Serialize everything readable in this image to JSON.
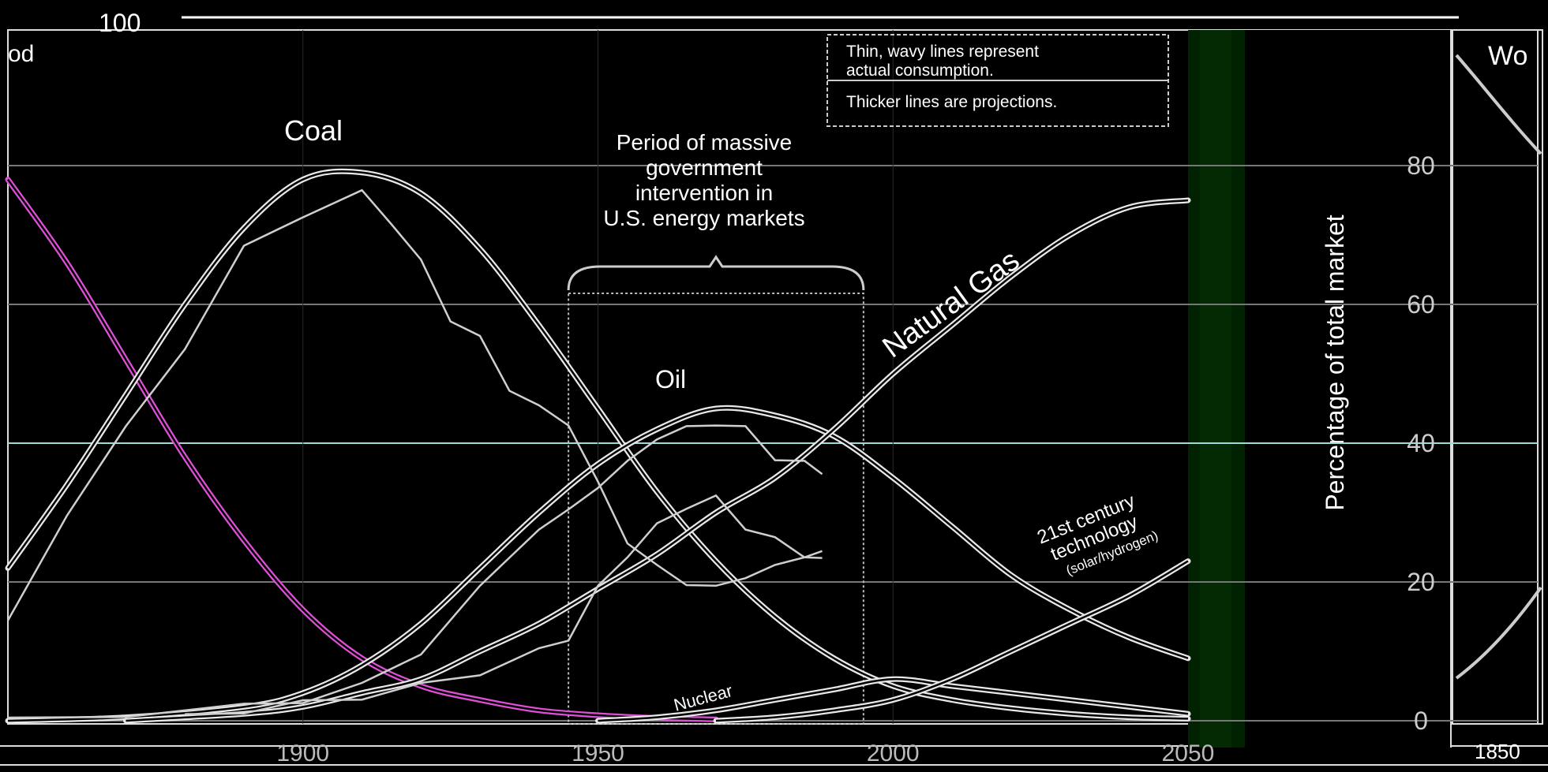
{
  "chart_data": {
    "type": "line",
    "title": "",
    "top_tick": "100",
    "ylabel": "Percentage of total market",
    "ylim": [
      0,
      100
    ],
    "yticks": [
      "0",
      "20",
      "40",
      "60",
      "80"
    ],
    "xlim": [
      1850,
      2050
    ],
    "xticks": [
      "1900",
      "1950",
      "2000",
      "2050"
    ],
    "legend": {
      "line1": "Thin, wavy lines represent",
      "line2": "actual consumption.",
      "line3": "Thicker lines are projections."
    },
    "annotations": {
      "wood": "od",
      "right_panel_label": "Wo",
      "right_panel_tick": "1850",
      "period": [
        "Period of massive",
        "government",
        "intervention in",
        "U.S. energy markets"
      ],
      "nuclear": "Nuclear",
      "tech": [
        "21st century",
        "technology",
        "(solar/hydrogen)"
      ]
    },
    "period_range": [
      1945,
      1995
    ],
    "series": [
      {
        "name": "Wood",
        "style": "projection",
        "x": [
          1850,
          1860,
          1870,
          1880,
          1890,
          1900,
          1910,
          1920,
          1930,
          1940,
          1950,
          1960,
          1970
        ],
        "values": [
          78,
          66,
          52,
          38,
          26,
          16,
          9,
          5,
          3,
          1.5,
          0.8,
          0.4,
          0.2
        ]
      },
      {
        "name": "Coal",
        "style": "projection",
        "x": [
          1850,
          1860,
          1870,
          1880,
          1890,
          1900,
          1910,
          1920,
          1930,
          1940,
          1950,
          1960,
          1970,
          1980,
          1990,
          2000,
          2010,
          2020,
          2030,
          2040,
          2050
        ],
        "values": [
          22,
          34,
          47,
          60,
          71,
          78,
          79,
          76,
          68,
          57,
          45,
          33,
          23,
          15,
          9,
          5,
          3,
          1.8,
          1,
          0.5,
          0.3
        ]
      },
      {
        "name": "Oil",
        "style": "projection",
        "x": [
          1850,
          1870,
          1890,
          1900,
          1910,
          1920,
          1930,
          1940,
          1950,
          1960,
          1970,
          1980,
          1990,
          2000,
          2010,
          2020,
          2030,
          2040,
          2050
        ],
        "values": [
          0,
          0.5,
          2,
          4,
          8,
          14,
          22,
          30,
          37,
          42,
          45,
          44,
          41,
          35,
          28,
          21,
          16,
          12,
          9
        ]
      },
      {
        "name": "Natural Gas",
        "style": "projection",
        "x": [
          1870,
          1890,
          1900,
          1910,
          1920,
          1930,
          1940,
          1950,
          1960,
          1970,
          1980,
          1990,
          2000,
          2010,
          2020,
          2030,
          2040,
          2050
        ],
        "values": [
          0,
          1,
          2,
          4,
          6,
          10,
          14,
          19,
          24,
          30,
          35,
          42,
          50,
          57,
          64,
          70,
          74,
          75
        ]
      },
      {
        "name": "Nuclear",
        "style": "projection",
        "x": [
          1950,
          1960,
          1970,
          1980,
          1990,
          2000,
          2010,
          2020,
          2030,
          2040,
          2050
        ],
        "values": [
          0,
          0.5,
          1.5,
          3,
          4.5,
          6,
          5,
          4,
          3,
          2,
          1
        ]
      },
      {
        "name": "21st century technology (solar/hydrogen)",
        "style": "projection",
        "x": [
          1970,
          1980,
          1990,
          2000,
          2010,
          2020,
          2030,
          2040,
          2050
        ],
        "values": [
          0,
          0.5,
          1.5,
          3,
          6,
          10,
          14,
          18,
          23
        ]
      },
      {
        "name": "Coal actual",
        "style": "actual",
        "x": [
          1850,
          1860,
          1870,
          1880,
          1890,
          1900,
          1910,
          1915,
          1920,
          1925,
          1930,
          1935,
          1940,
          1945,
          1950,
          1955,
          1960,
          1965,
          1970,
          1975,
          1980,
          1985,
          1988
        ],
        "values": [
          14,
          30,
          42,
          54,
          68,
          73,
          76,
          72,
          66,
          58,
          55,
          48,
          45,
          43,
          34,
          26,
          22,
          20,
          19,
          21,
          22,
          24,
          24
        ]
      },
      {
        "name": "Oil actual",
        "style": "actual",
        "x": [
          1850,
          1870,
          1890,
          1900,
          1910,
          1920,
          1930,
          1940,
          1945,
          1950,
          1955,
          1960,
          1965,
          1970,
          1975,
          1980,
          1985,
          1988
        ],
        "values": [
          0,
          1,
          2,
          3,
          5,
          10,
          19,
          28,
          30,
          34,
          37,
          41,
          42,
          43,
          42,
          38,
          37,
          36
        ]
      },
      {
        "name": "Natural Gas actual",
        "style": "actual",
        "x": [
          1880,
          1890,
          1900,
          1910,
          1920,
          1930,
          1940,
          1945,
          1950,
          1955,
          1960,
          1965,
          1970,
          1975,
          1980,
          1985,
          1988
        ],
        "values": [
          0.5,
          1.5,
          2.5,
          3.5,
          5,
          7,
          10,
          12,
          19,
          24,
          28,
          31,
          32,
          28,
          26,
          24,
          23
        ]
      }
    ]
  }
}
